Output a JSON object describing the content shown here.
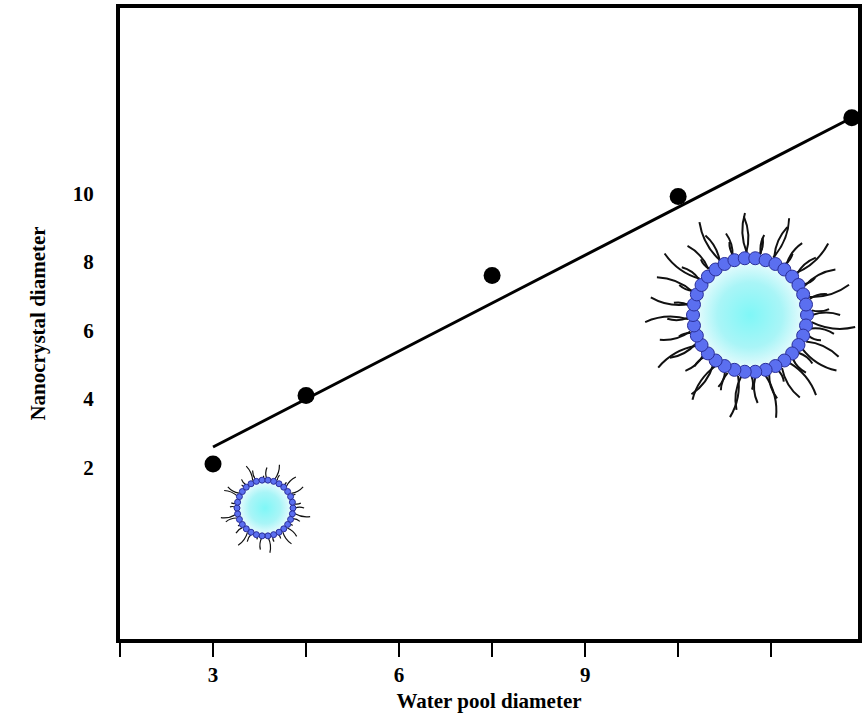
{
  "chart_data": {
    "type": "scatter",
    "x_label": "Water pool diameter",
    "y_label": "Nanocrystal diameter",
    "series": [
      {
        "type": "scatter",
        "color": "#000000",
        "marker": "circle",
        "x": [
          3,
          4.5,
          7.5,
          10.5,
          13.3
        ],
        "values": [
          2.1,
          4.1,
          7.6,
          9.9,
          12.2
        ]
      },
      {
        "type": "line",
        "color": "#000000",
        "line_style": "solid",
        "x": [
          3,
          13.3
        ],
        "values": [
          2.6,
          12.2
        ]
      }
    ],
    "xlim": [
      1.5,
      13.4
    ],
    "ylim": [
      -3,
      15.4
    ],
    "xticks": [
      3,
      6,
      9
    ],
    "yticks": [
      2,
      4,
      6,
      8,
      10
    ],
    "grid": false
  }
}
